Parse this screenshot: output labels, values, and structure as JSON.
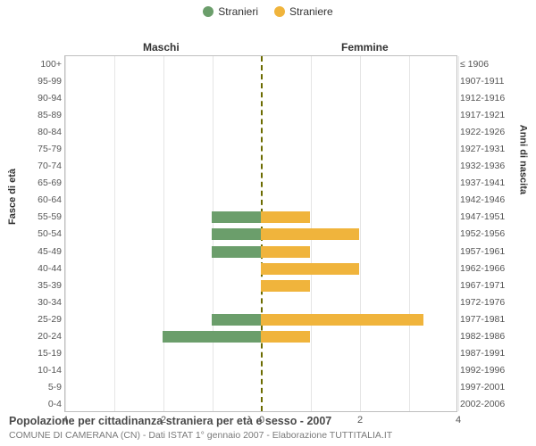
{
  "legend": {
    "male": {
      "label": "Stranieri",
      "color": "#6b9e6b"
    },
    "female": {
      "label": "Straniere",
      "color": "#f0b43c"
    }
  },
  "headers": {
    "left": "Maschi",
    "right": "Femmine"
  },
  "yaxis": {
    "left_title": "Fasce di età",
    "right_title": "Anni di nascita"
  },
  "chart": {
    "type": "population-pyramid",
    "x_max": 4,
    "x_ticks": [
      4,
      2,
      0,
      2,
      4
    ],
    "background_color": "#ffffff",
    "grid_color": "#e5e5e5",
    "center_line_color": "#6b6b00",
    "bar_colors": {
      "male": "#6b9e6b",
      "female": "#f0b43c"
    },
    "rows": [
      {
        "age": "100+",
        "birth": "≤ 1906",
        "m": 0,
        "f": 0
      },
      {
        "age": "95-99",
        "birth": "1907-1911",
        "m": 0,
        "f": 0
      },
      {
        "age": "90-94",
        "birth": "1912-1916",
        "m": 0,
        "f": 0
      },
      {
        "age": "85-89",
        "birth": "1917-1921",
        "m": 0,
        "f": 0
      },
      {
        "age": "80-84",
        "birth": "1922-1926",
        "m": 0,
        "f": 0
      },
      {
        "age": "75-79",
        "birth": "1927-1931",
        "m": 0,
        "f": 0
      },
      {
        "age": "70-74",
        "birth": "1932-1936",
        "m": 0,
        "f": 0
      },
      {
        "age": "65-69",
        "birth": "1937-1941",
        "m": 0,
        "f": 0
      },
      {
        "age": "60-64",
        "birth": "1942-1946",
        "m": 0,
        "f": 0
      },
      {
        "age": "55-59",
        "birth": "1947-1951",
        "m": 1,
        "f": 1
      },
      {
        "age": "50-54",
        "birth": "1952-1956",
        "m": 1,
        "f": 2
      },
      {
        "age": "45-49",
        "birth": "1957-1961",
        "m": 1,
        "f": 1
      },
      {
        "age": "40-44",
        "birth": "1962-1966",
        "m": 0,
        "f": 2
      },
      {
        "age": "35-39",
        "birth": "1967-1971",
        "m": 0,
        "f": 1
      },
      {
        "age": "30-34",
        "birth": "1972-1976",
        "m": 0,
        "f": 0
      },
      {
        "age": "25-29",
        "birth": "1977-1981",
        "m": 1,
        "f": 3.3
      },
      {
        "age": "20-24",
        "birth": "1982-1986",
        "m": 2,
        "f": 1
      },
      {
        "age": "15-19",
        "birth": "1987-1991",
        "m": 0,
        "f": 0
      },
      {
        "age": "10-14",
        "birth": "1992-1996",
        "m": 0,
        "f": 0
      },
      {
        "age": "5-9",
        "birth": "1997-2001",
        "m": 0,
        "f": 0
      },
      {
        "age": "0-4",
        "birth": "2002-2006",
        "m": 0,
        "f": 0
      }
    ]
  },
  "footer": {
    "title": "Popolazione per cittadinanza straniera per età e sesso - 2007",
    "subtitle": "COMUNE DI CAMERANA (CN) - Dati ISTAT 1° gennaio 2007 - Elaborazione TUTTITALIA.IT"
  }
}
